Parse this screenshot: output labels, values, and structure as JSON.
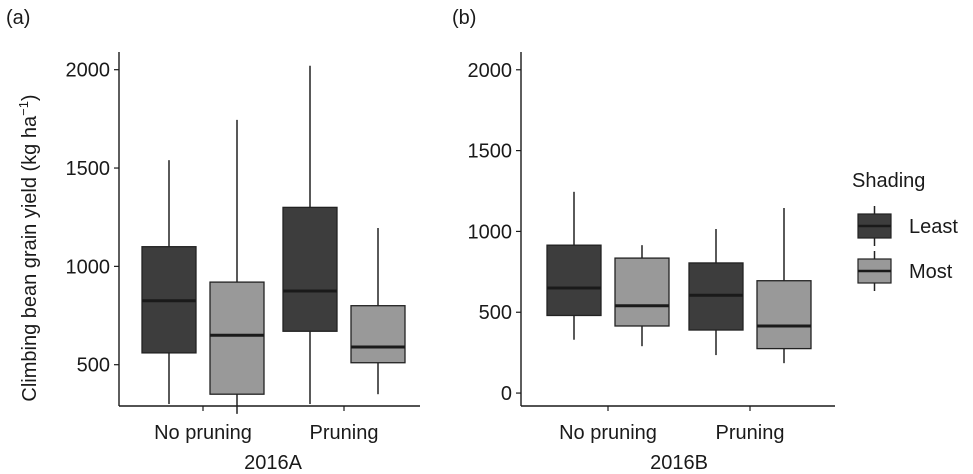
{
  "chart_data": [
    {
      "type": "box",
      "panel_tag": "(a)",
      "xlabel": "2016A",
      "ylabel": "Climbing bean grain yield (kg ha",
      "ylabel_sup": "−1",
      "ylabel_close": ")",
      "ylim": [
        290,
        2090
      ],
      "yticks": [
        500,
        1000,
        1500,
        2000
      ],
      "categories": [
        "No pruning",
        "Pruning"
      ],
      "series": [
        {
          "name": "Least",
          "color": "#3d3d3d",
          "boxes": [
            {
              "min": 300,
              "q1": 560,
              "median": 825,
              "q3": 1100,
              "max": 1540
            },
            {
              "min": 300,
              "q1": 670,
              "median": 875,
              "q3": 1300,
              "max": 2020
            }
          ]
        },
        {
          "name": "Most",
          "color": "#999999",
          "boxes": [
            {
              "min": 250,
              "q1": 350,
              "median": 650,
              "q3": 920,
              "max": 1745
            },
            {
              "min": 350,
              "q1": 510,
              "median": 590,
              "q3": 800,
              "max": 1195
            }
          ]
        }
      ]
    },
    {
      "type": "box",
      "panel_tag": "(b)",
      "xlabel": "2016B",
      "ylabel": "",
      "ylim": [
        -80,
        2110
      ],
      "yticks": [
        0,
        500,
        1000,
        1500,
        2000
      ],
      "categories": [
        "No pruning",
        "Pruning"
      ],
      "series": [
        {
          "name": "Least",
          "color": "#3d3d3d",
          "boxes": [
            {
              "min": 330,
              "q1": 480,
              "median": 650,
              "q3": 915,
              "max": 1245
            },
            {
              "min": 235,
              "q1": 390,
              "median": 605,
              "q3": 805,
              "max": 1015
            }
          ]
        },
        {
          "name": "Most",
          "color": "#999999",
          "boxes": [
            {
              "min": 290,
              "q1": 415,
              "median": 540,
              "q3": 835,
              "max": 915
            },
            {
              "min": 185,
              "q1": 275,
              "median": 415,
              "q3": 695,
              "max": 1145
            }
          ]
        }
      ]
    }
  ],
  "legend": {
    "title": "Shading",
    "items": [
      {
        "label": "Least",
        "color": "#3d3d3d"
      },
      {
        "label": "Most",
        "color": "#999999"
      }
    ]
  }
}
